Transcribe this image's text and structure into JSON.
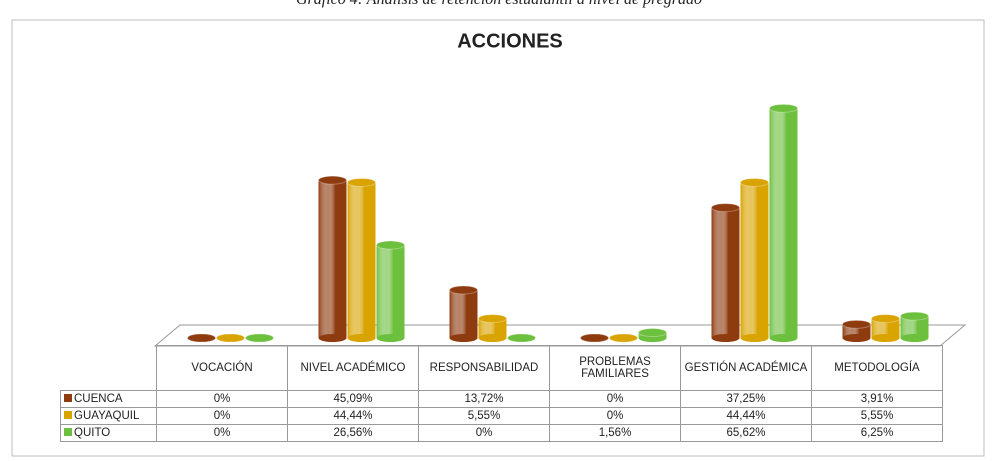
{
  "chart_data": {
    "type": "bar3d",
    "subtitle": "Gráfico 4: Análisis de retención estudiantil a nivel de pregrado",
    "title": "ACCIONES",
    "categories": [
      "VOCACIÓN",
      "NIVEL ACADÉMICO",
      "RESPONSABILIDAD",
      "PROBLEMAS FAMILIARES",
      "GESTIÓN ACADÉMICA",
      "METODOLOGÍA"
    ],
    "series": [
      {
        "name": "CUENCA",
        "color": "#8e3b10",
        "values": [
          0,
          45.09,
          13.72,
          0,
          37.25,
          3.91
        ],
        "value_labels": [
          "0%",
          "45,09%",
          "13,72%",
          "0%",
          "37,25%",
          "3,91%"
        ]
      },
      {
        "name": "GUAYAQUIL",
        "color": "#d9a300",
        "values": [
          0,
          44.44,
          5.55,
          0,
          44.44,
          5.55
        ],
        "value_labels": [
          "0%",
          "44,44%",
          "5,55%",
          "0%",
          "44,44%",
          "5,55%"
        ]
      },
      {
        "name": "QUITO",
        "color": "#6dbf3e",
        "values": [
          0,
          26.56,
          0,
          1.56,
          65.62,
          6.25
        ],
        "value_labels": [
          "0%",
          "26,56%",
          "0%",
          "1,56%",
          "65,62%",
          "6,25%"
        ]
      }
    ]
  }
}
